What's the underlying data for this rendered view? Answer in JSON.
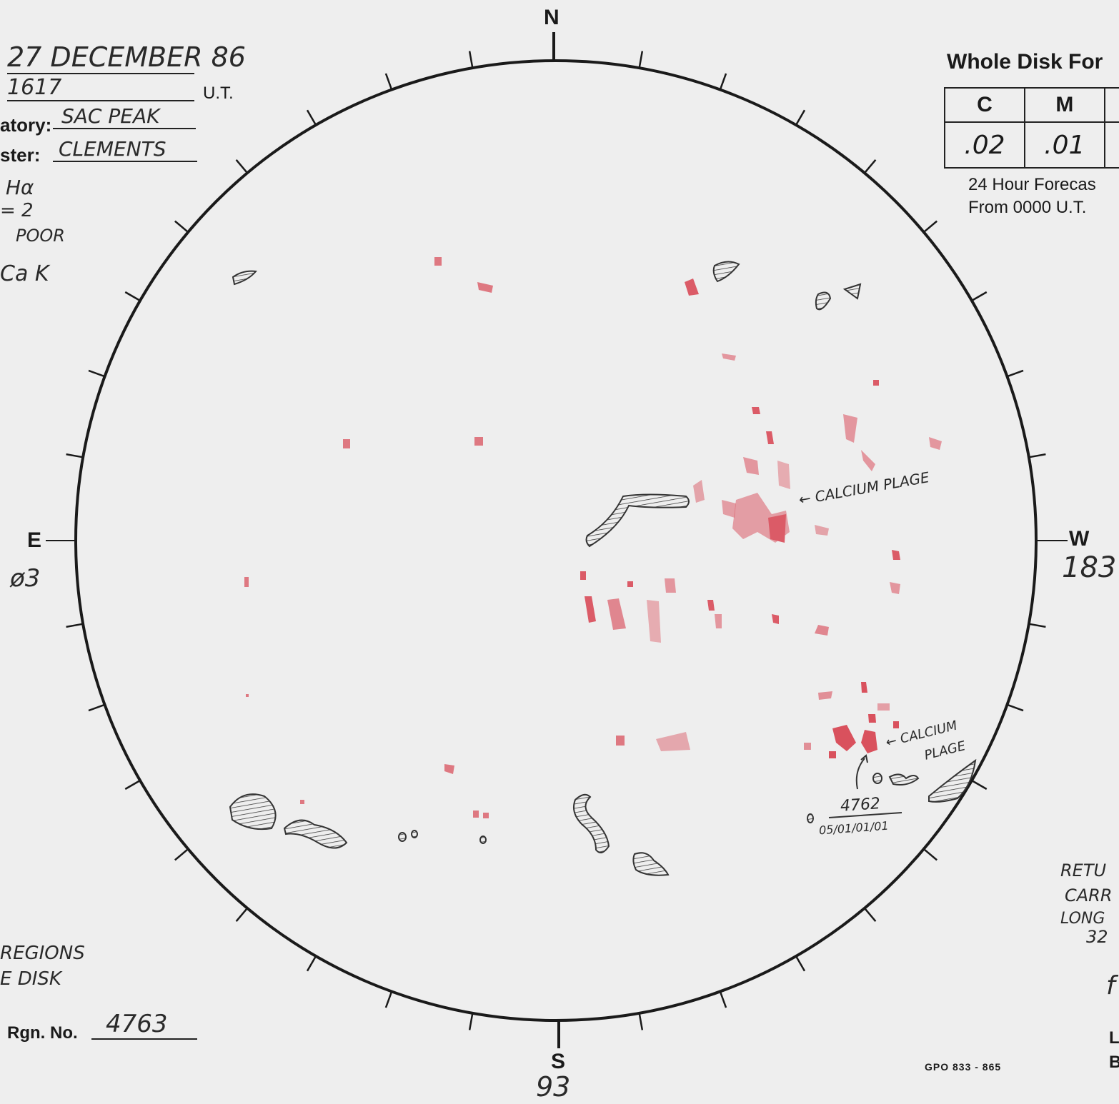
{
  "header": {
    "date": "27 DECEMBER 86",
    "time": "1617",
    "time_unit": "U.T.",
    "observatory_label": "atory:",
    "observatory": "SAC PEAK",
    "forecaster_label": "ster:",
    "forecaster": "CLEMENTS",
    "line_halpha": "Hα",
    "line_eq2": "= 2",
    "line_poor": "POOR",
    "line_cak": "Ca K"
  },
  "forecast": {
    "title": "Whole Disk For",
    "columns": [
      "C",
      "M",
      ""
    ],
    "values": [
      ".02",
      ".01",
      ""
    ],
    "note_line1": "24 Hour Forecas",
    "note_line2": "From 0000 U.T."
  },
  "compass": {
    "north": "N",
    "south": "S",
    "east": "E",
    "west": "W",
    "east_value": "ø3",
    "west_value": "183",
    "south_value": "93"
  },
  "annotations": {
    "plage_upper": "← CALCIUM PLAGE",
    "plage_lower_1": "← CALCIUM",
    "plage_lower_2": "PLAGE",
    "region_number": "4762",
    "region_code": "05/01/01/01"
  },
  "bottom_left": {
    "line1": "REGIONS",
    "line2": "E DISK",
    "rgn_label": "Rgn. No.",
    "rgn_value": "4763"
  },
  "right_notes": {
    "line1": "RETU",
    "line2": "CARR",
    "line3": "LONG",
    "line4": "32",
    "mark": "f",
    "letter1": "L",
    "letter2": "B"
  },
  "footer": {
    "gpo": "GPO 833 - 865"
  },
  "colors": {
    "plage": "#d42a3a",
    "ink": "#1a1a1a"
  }
}
